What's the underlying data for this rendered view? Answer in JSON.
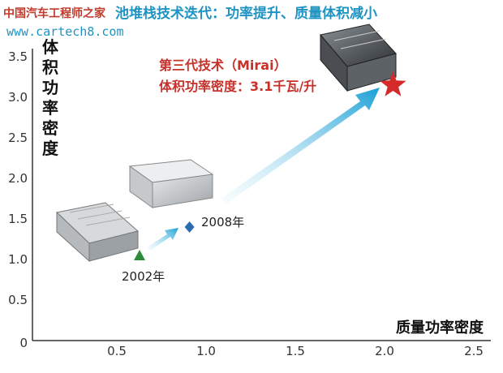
{
  "watermark": {
    "site_cn": "中国汽车工程师之家",
    "site_url": "www.cartech8.com"
  },
  "chart_data": {
    "type": "scatter",
    "title": "池堆栈技术迭代：功率提升、质量体积减小",
    "xlabel": "质量功率密度",
    "ylabel": "体积功率密度",
    "xlim": [
      0,
      2.5
    ],
    "ylim": [
      0,
      3.5
    ],
    "x_ticks": [
      "0.5",
      "1.0",
      "1.5",
      "2.0",
      "2.5"
    ],
    "y_ticks": [
      "0",
      "0.5",
      "1.0",
      "1.5",
      "2.0",
      "2.5",
      "3.0",
      "3.5"
    ],
    "grid": false,
    "points": [
      {
        "label": "2002年",
        "x": 0.6,
        "y": 1.05,
        "marker": "triangle",
        "color": "#2e8b3a"
      },
      {
        "label": "2008年",
        "x": 0.88,
        "y": 1.4,
        "marker": "diamond",
        "color": "#2b6cb0"
      },
      {
        "label": "",
        "x": 2.02,
        "y": 3.15,
        "marker": "star",
        "color": "#d42a2a"
      }
    ],
    "annotation": {
      "line1": "第三代技术（Mirai）",
      "line2": "体积功率密度：3.1千瓦/升"
    }
  }
}
